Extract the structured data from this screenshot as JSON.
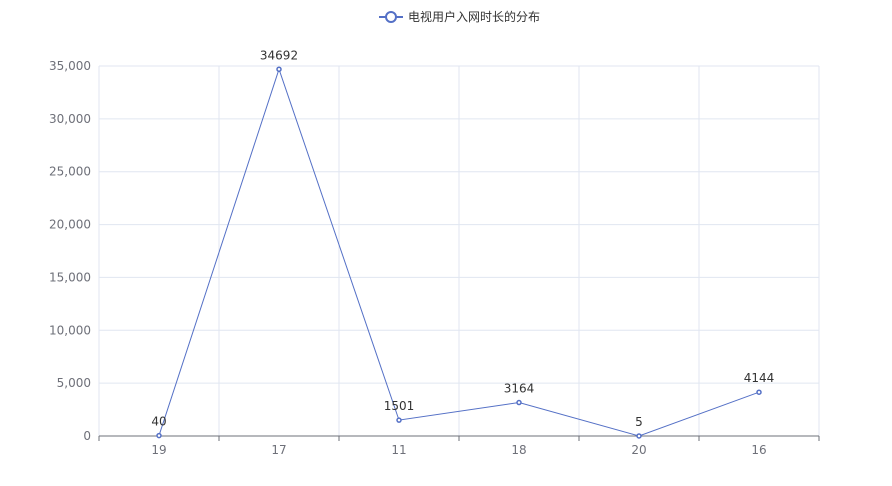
{
  "chart_data": {
    "type": "line",
    "categories": [
      "19",
      "17",
      "11",
      "18",
      "20",
      "16"
    ],
    "series": [
      {
        "name": "电视用户入网时长的分布",
        "values": [
          40,
          34692,
          1501,
          3164,
          5,
          4144
        ],
        "color": "#5470c6"
      }
    ],
    "ylim": [
      0,
      35000
    ],
    "yticks": [
      "0",
      "5,000",
      "10,000",
      "15,000",
      "20,000",
      "25,000",
      "30,000",
      "35,000"
    ],
    "grid": true,
    "legend": "top-center",
    "show_data_labels": true
  }
}
